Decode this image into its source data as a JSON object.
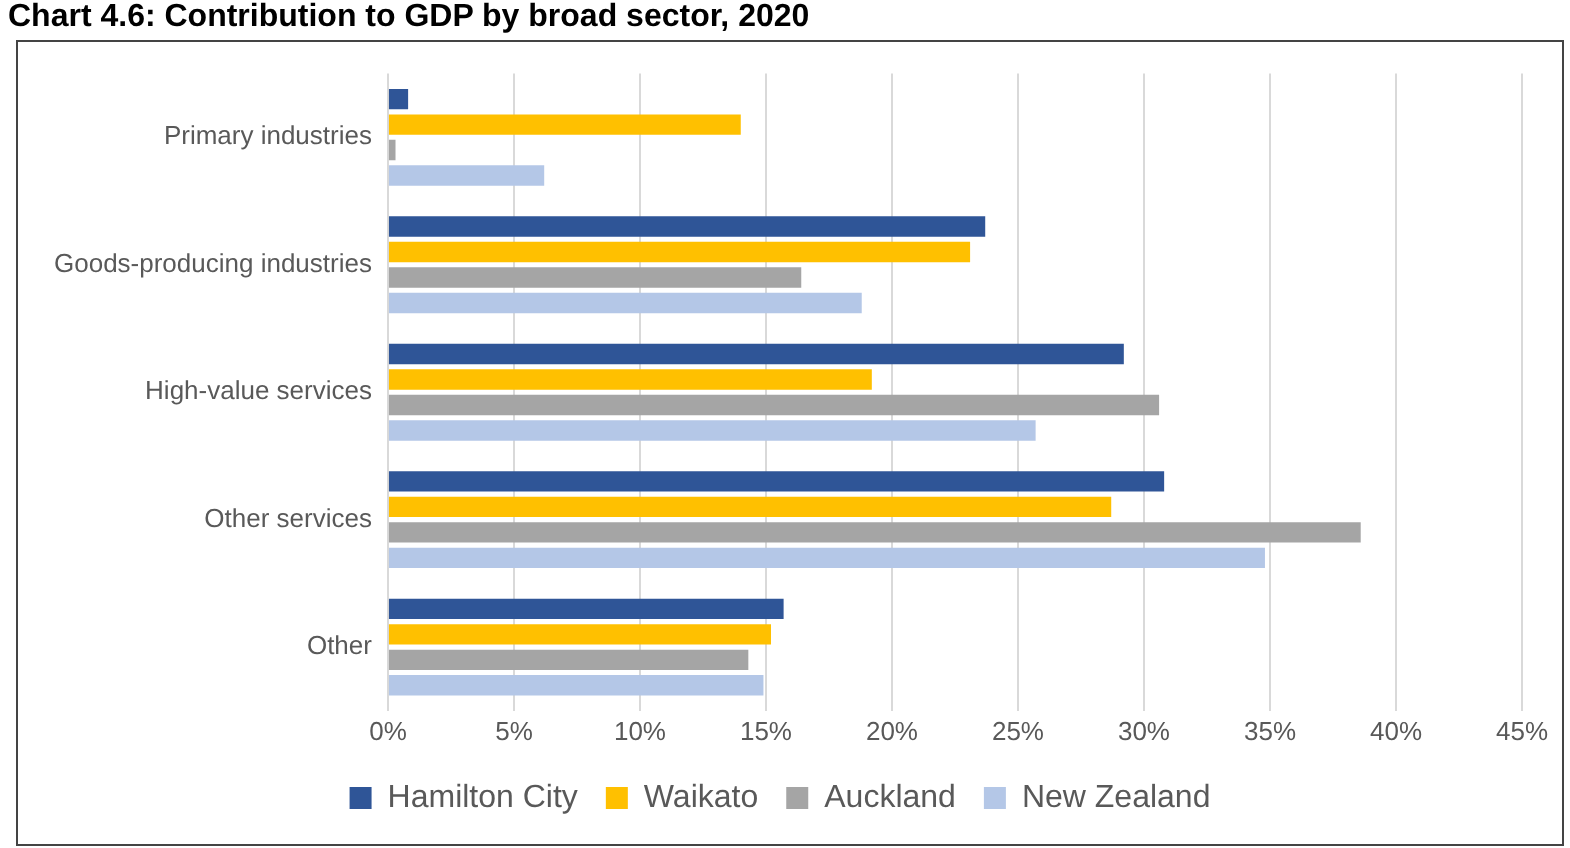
{
  "chart_data": {
    "type": "bar",
    "orientation": "horizontal",
    "title": "Chart 4.6: Contribution to GDP by broad sector, 2020",
    "categories": [
      "Primary industries",
      "Goods-producing industries",
      "High-value services",
      "Other services",
      "Other"
    ],
    "series": [
      {
        "name": "Hamilton City",
        "color": "#2f5597",
        "values": [
          0.8,
          23.7,
          29.2,
          30.8,
          15.7
        ]
      },
      {
        "name": "Waikato",
        "color": "#ffc000",
        "values": [
          14.0,
          23.1,
          19.2,
          28.7,
          15.2
        ]
      },
      {
        "name": "Auckland",
        "color": "#a5a5a5",
        "values": [
          0.3,
          16.4,
          30.6,
          38.6,
          14.3
        ]
      },
      {
        "name": "New Zealand",
        "color": "#b4c7e7",
        "values": [
          6.2,
          18.8,
          25.7,
          34.8,
          14.9
        ]
      }
    ],
    "xlim": [
      0,
      45
    ],
    "xticks": [
      {
        "value": 0,
        "label": "0%"
      },
      {
        "value": 5,
        "label": "5%"
      },
      {
        "value": 10,
        "label": "10%"
      },
      {
        "value": 15,
        "label": "15%"
      },
      {
        "value": 20,
        "label": "20%"
      },
      {
        "value": 25,
        "label": "25%"
      },
      {
        "value": 30,
        "label": "30%"
      },
      {
        "value": 35,
        "label": "35%"
      },
      {
        "value": 40,
        "label": "40%"
      },
      {
        "value": 45,
        "label": "45%"
      }
    ],
    "grid": "x",
    "legend": "bottom"
  }
}
